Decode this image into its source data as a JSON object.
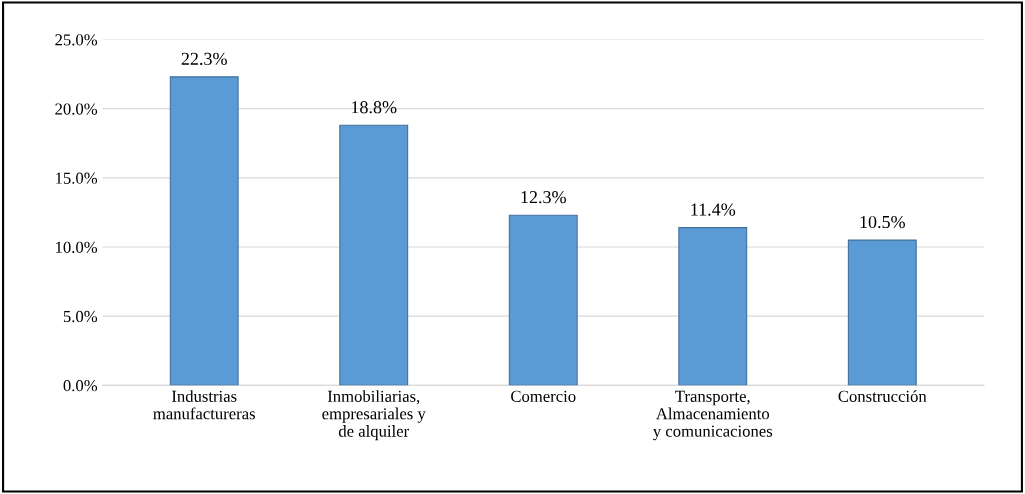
{
  "chart_data": {
    "type": "bar",
    "categories": [
      "Industrias\nmanufactureras",
      "Inmobiliarias,\nempresariales y\nde alquiler",
      "Comercio",
      "Transporte,\nAlmacenamiento\ny comunicaciones",
      "Construcción"
    ],
    "values": [
      22.3,
      18.8,
      12.3,
      11.4,
      10.5
    ],
    "value_labels": [
      "22.3%",
      "18.8%",
      "12.3%",
      "11.4%",
      "10.5%"
    ],
    "color": "#5b9bd5",
    "ylim": [
      0,
      25
    ],
    "yticks": [
      {
        "value": 0,
        "label": "0.0%"
      },
      {
        "value": 5,
        "label": "5.0%"
      },
      {
        "value": 10,
        "label": "10.0%"
      },
      {
        "value": 15,
        "label": "15.0%"
      },
      {
        "value": 20,
        "label": "20.0%"
      },
      {
        "value": 25,
        "label": "25.0%"
      }
    ],
    "grid": "y"
  }
}
